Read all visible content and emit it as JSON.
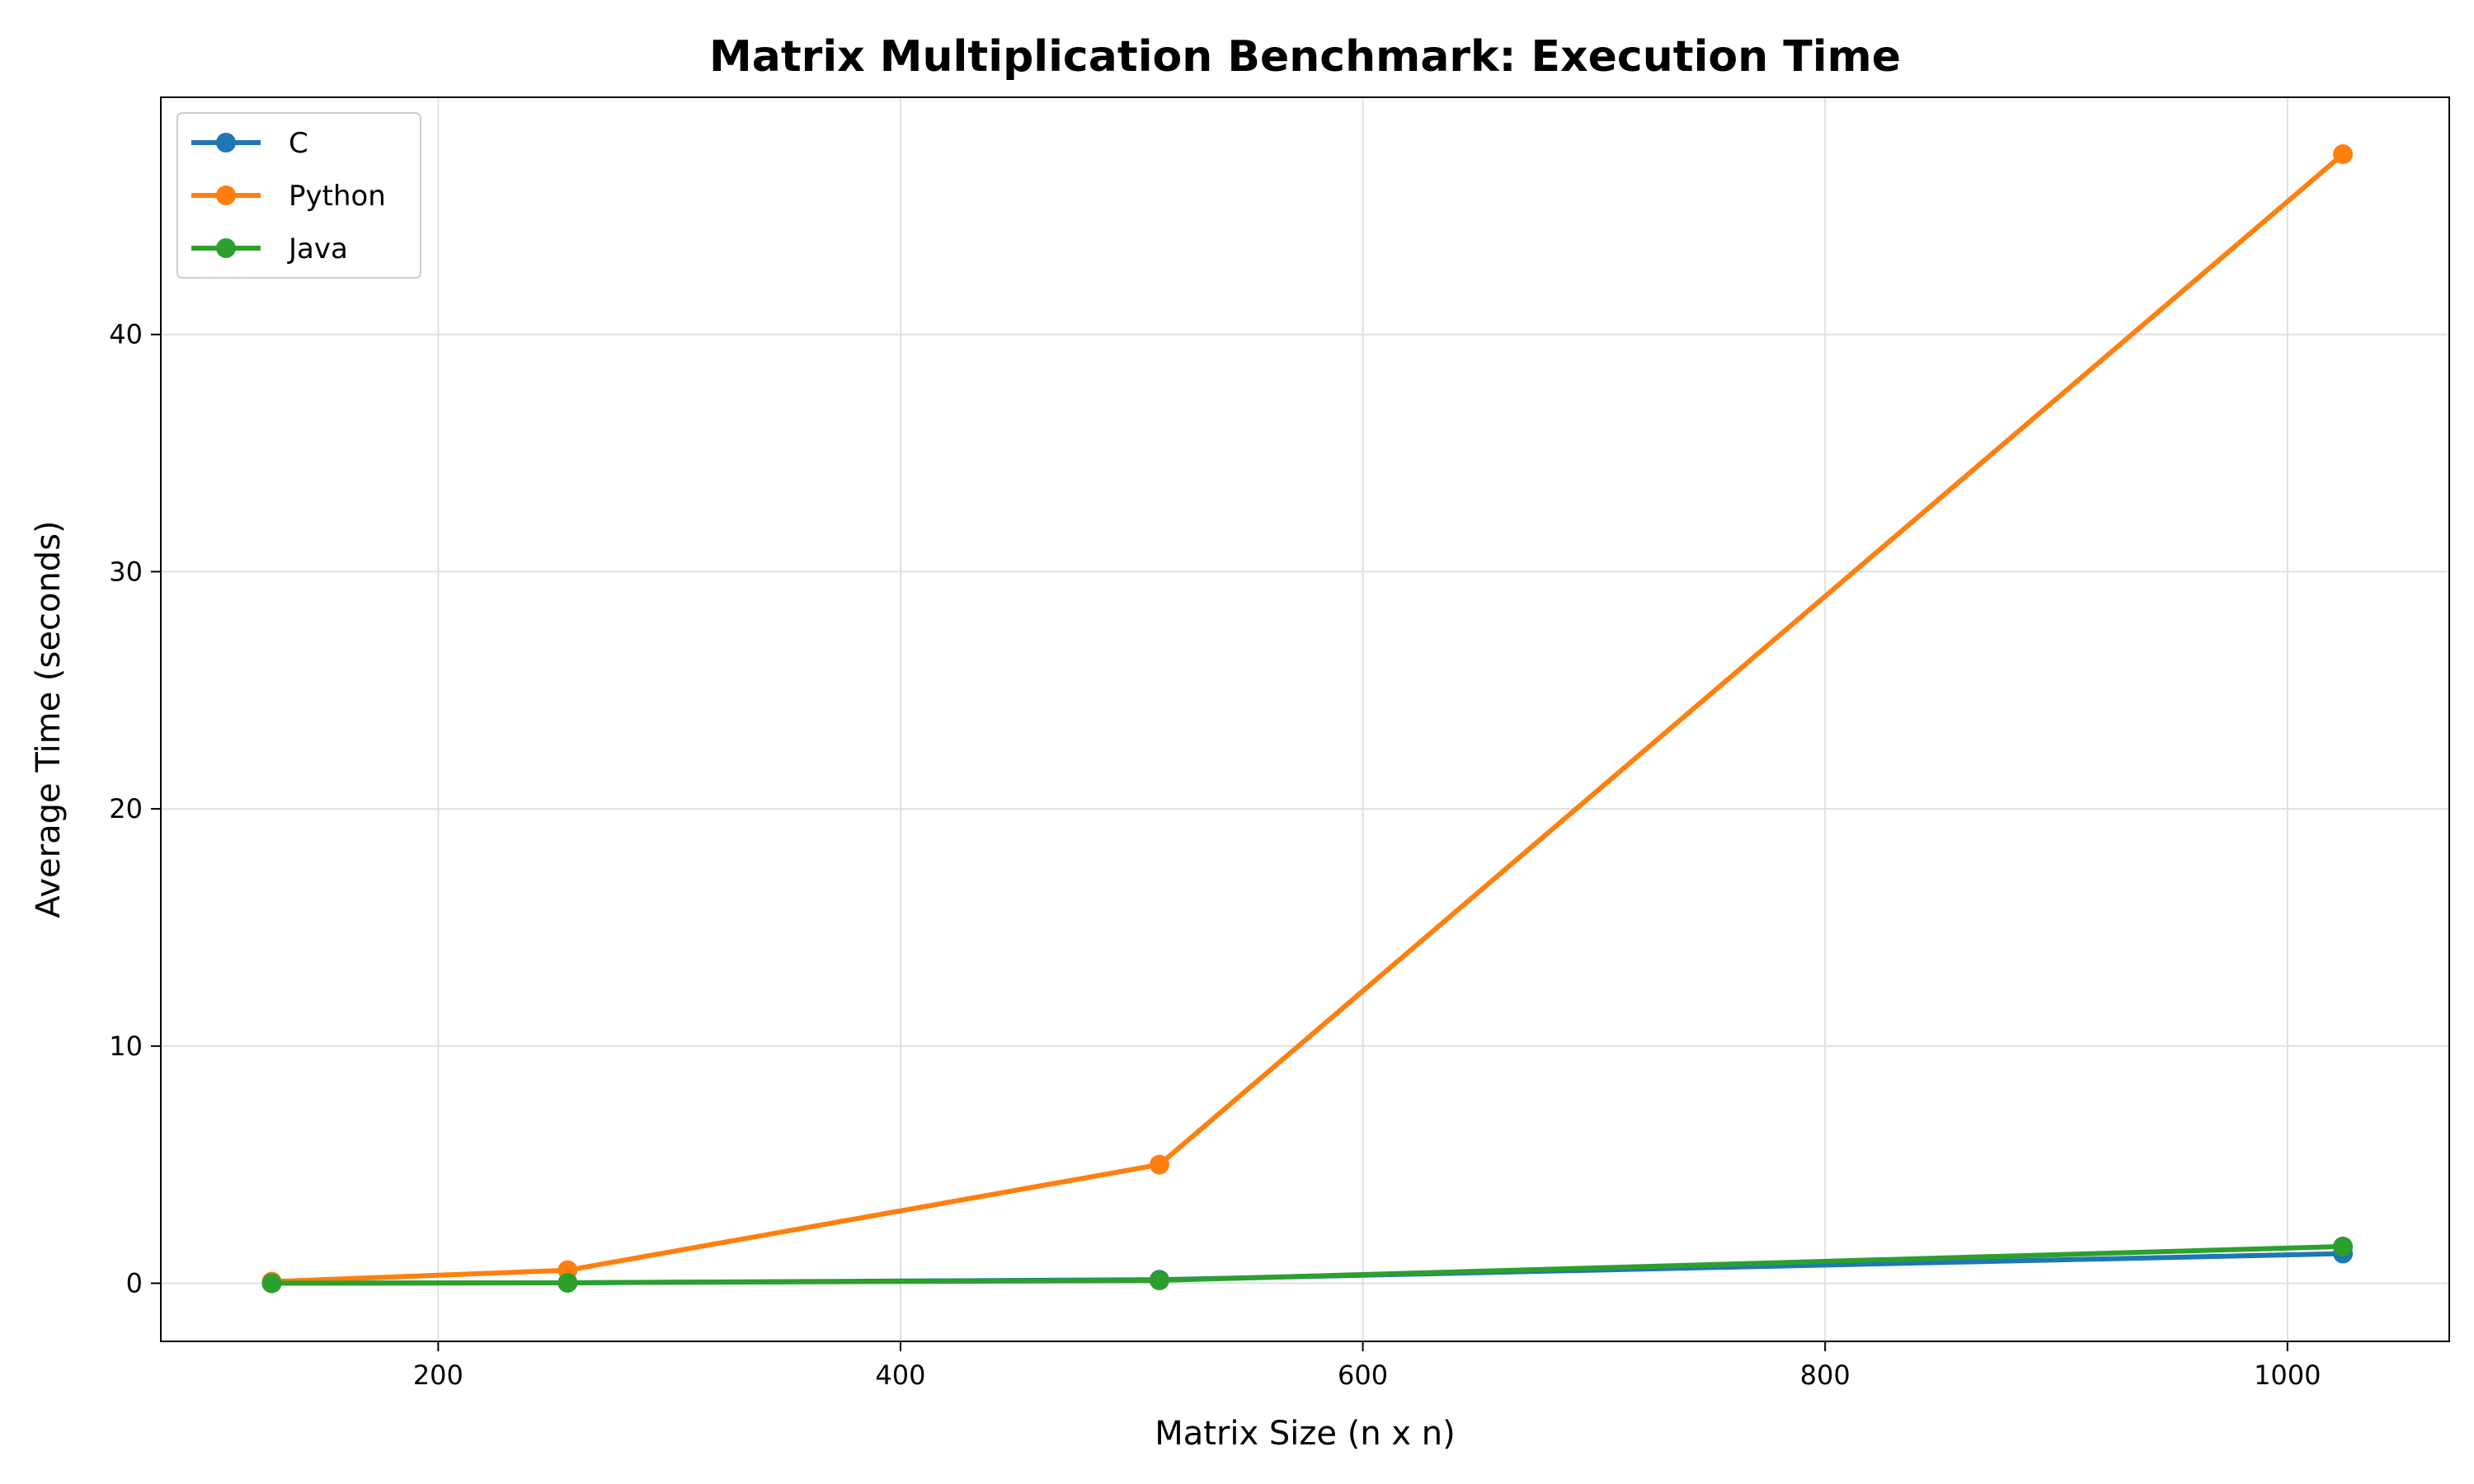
{
  "chart_data": {
    "type": "line",
    "title": "Matrix Multiplication Benchmark: Execution Time",
    "xlabel": "Matrix Size (n x n)",
    "ylabel": "Average Time (seconds)",
    "x": [
      128,
      256,
      512,
      1024
    ],
    "series": [
      {
        "name": "C",
        "color": "#1f77b4",
        "values": [
          0.002,
          0.02,
          0.15,
          1.25
        ]
      },
      {
        "name": "Python",
        "color": "#ff7f0e",
        "values": [
          0.07,
          0.55,
          5.0,
          47.6
        ]
      },
      {
        "name": "Java",
        "color": "#2ca02c",
        "values": [
          0.003,
          0.02,
          0.12,
          1.55
        ]
      }
    ],
    "xlim": [
      80,
      1070
    ],
    "ylim": [
      -2.45,
      50
    ],
    "xticks": [
      200,
      400,
      600,
      800,
      1000
    ],
    "yticks": [
      0,
      10,
      20,
      30,
      40
    ],
    "grid": true,
    "legend_position": "top-left"
  }
}
